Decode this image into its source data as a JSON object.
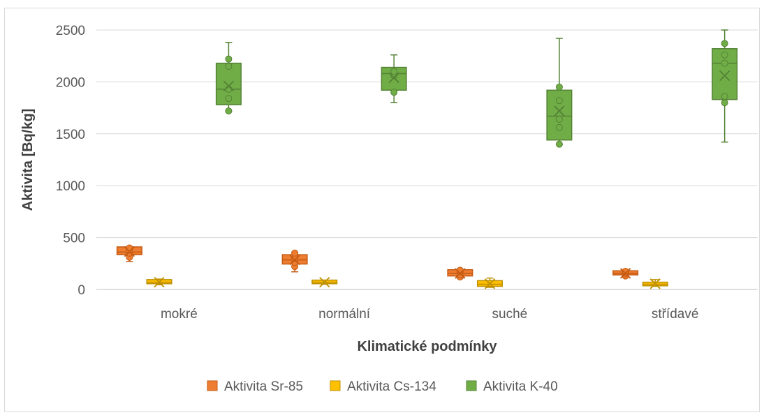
{
  "chart_data": {
    "type": "box",
    "title": "",
    "xlabel": "Klimatické podmínky",
    "ylabel": "Aktivita [Bq/kg]",
    "ylim": [
      0,
      2500
    ],
    "yticks": [
      "0",
      "500",
      "1000",
      "1500",
      "2000",
      "2500"
    ],
    "categories": [
      "mokré",
      "normální",
      "suché",
      "střídavé"
    ],
    "grid": true,
    "legend_position": "bottom",
    "series": [
      {
        "name": "Aktivita Sr-85",
        "color": "#ED7D31",
        "stroke": "#C55A11",
        "boxes": [
          {
            "min": 270,
            "q1": 335,
            "median": 360,
            "q3": 410,
            "max": 410,
            "mean": 365,
            "points": [
              310,
              350,
              380,
              400
            ]
          },
          {
            "min": 170,
            "q1": 245,
            "median": 285,
            "q3": 335,
            "max": 360,
            "mean": 285,
            "points": [
              220,
              260,
              300,
              350
            ]
          },
          {
            "min": 110,
            "q1": 130,
            "median": 155,
            "q3": 190,
            "max": 190,
            "mean": 155,
            "points": [
              120,
              140,
              170,
              185
            ]
          },
          {
            "min": 120,
            "q1": 140,
            "median": 155,
            "q3": 180,
            "max": 180,
            "mean": 155,
            "points": [
              130,
              150,
              165,
              175
            ]
          }
        ]
      },
      {
        "name": "Aktivita Cs-134",
        "color": "#FFC000",
        "stroke": "#BF9000",
        "boxes": [
          {
            "min": 45,
            "q1": 55,
            "median": 70,
            "q3": 95,
            "max": 100,
            "mean": 70,
            "points": []
          },
          {
            "min": 50,
            "q1": 55,
            "median": 70,
            "q3": 90,
            "max": 90,
            "mean": 70,
            "points": []
          },
          {
            "min": 20,
            "q1": 30,
            "median": 50,
            "q3": 85,
            "max": 110,
            "mean": 55,
            "points": []
          },
          {
            "min": 30,
            "q1": 35,
            "median": 50,
            "q3": 70,
            "max": 95,
            "mean": 55,
            "points": []
          }
        ]
      },
      {
        "name": "Aktivita K-40",
        "color": "#70AD47",
        "stroke": "#548235",
        "boxes": [
          {
            "min": 1720,
            "q1": 1780,
            "median": 1930,
            "q3": 2180,
            "max": 2380,
            "mean": 1960,
            "points": [
              1720,
              1840,
              1930,
              2150,
              2220
            ]
          },
          {
            "min": 1800,
            "q1": 1920,
            "median": 2080,
            "q3": 2140,
            "max": 2260,
            "mean": 2040,
            "points": [
              1900,
              2060,
              2100
            ]
          },
          {
            "min": 1400,
            "q1": 1440,
            "median": 1670,
            "q3": 1920,
            "max": 2420,
            "mean": 1720,
            "points": [
              1400,
              1560,
              1640,
              1820,
              1950
            ]
          },
          {
            "min": 1420,
            "q1": 1830,
            "median": 2180,
            "q3": 2320,
            "max": 2500,
            "mean": 2060,
            "points": [
              1800,
              1860,
              2180,
              2260,
              2370
            ]
          }
        ]
      }
    ]
  }
}
